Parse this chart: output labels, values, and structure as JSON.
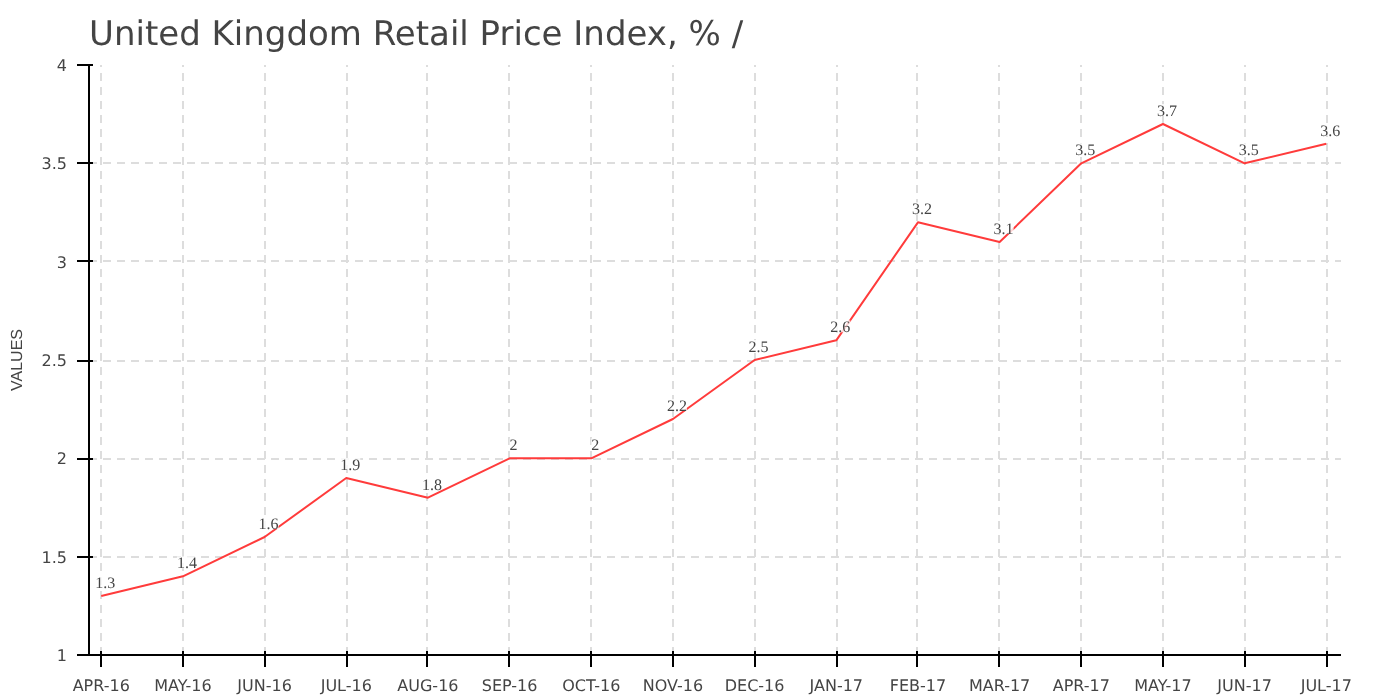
{
  "chart_data": {
    "type": "line",
    "title": "United Kingdom Retail Price Index, %  /",
    "ylabel": "VALUES",
    "categories": [
      "APR-16",
      "MAY-16",
      "JUN-16",
      "JUL-16",
      "AUG-16",
      "SEP-16",
      "OCT-16",
      "NOV-16",
      "DEC-16",
      "JAN-17",
      "FEB-17",
      "MAR-17",
      "APR-17",
      "MAY-17",
      "JUN-17",
      "JUL-17"
    ],
    "series": [
      {
        "color": "#ff3b3b",
        "values": [
          1.3,
          1.4,
          1.6,
          1.9,
          1.8,
          2,
          2,
          2.2,
          2.5,
          2.6,
          3.2,
          3.1,
          3.5,
          3.7,
          3.5,
          3.6
        ]
      }
    ],
    "ylim": [
      1,
      4
    ],
    "yticks": [
      1,
      1.5,
      2,
      2.5,
      3,
      3.5,
      4
    ],
    "grid": true,
    "data_labels": true
  }
}
